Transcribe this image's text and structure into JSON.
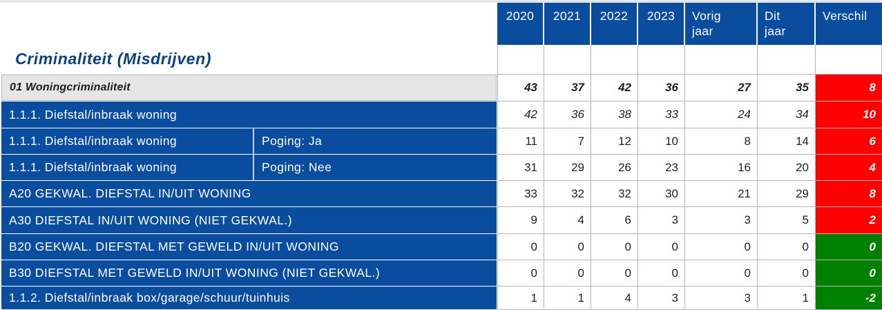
{
  "title": "Criminaliteit (Misdrijven)",
  "header": {
    "years": [
      "2020",
      "2021",
      "2022",
      "2023"
    ],
    "vorig_jaar": [
      "Vorig",
      "jaar"
    ],
    "dit_jaar": [
      "Dit",
      "jaar"
    ],
    "verschil": "Verschil"
  },
  "colors": {
    "header_blue": "#0a4d9f",
    "increase": "#ff0000",
    "no_change_or_decrease": "#008000",
    "group_bg": "#e6e6e6"
  },
  "rows": [
    {
      "label": "01 Woningcriminaliteit",
      "sub": "",
      "values": [
        "43",
        "37",
        "42",
        "36",
        "27",
        "35"
      ],
      "diff": "8",
      "trend": "up",
      "group": true
    },
    {
      "label": "1.1.1. Diefstal/inbraak woning",
      "sub": "",
      "values": [
        "42",
        "36",
        "38",
        "33",
        "24",
        "34"
      ],
      "diff": "10",
      "trend": "up"
    },
    {
      "label": "1.1.1. Diefstal/inbraak woning",
      "sub": "Poging: Ja",
      "values": [
        "11",
        "7",
        "12",
        "10",
        "8",
        "14"
      ],
      "diff": "6",
      "trend": "up"
    },
    {
      "label": "1.1.1. Diefstal/inbraak woning",
      "sub": "Poging: Nee",
      "values": [
        "31",
        "29",
        "26",
        "23",
        "16",
        "20"
      ],
      "diff": "4",
      "trend": "up"
    },
    {
      "label": "A20 GEKWAL. DIEFSTAL IN/UIT WONING",
      "sub": "",
      "values": [
        "33",
        "32",
        "32",
        "30",
        "21",
        "29"
      ],
      "diff": "8",
      "trend": "up"
    },
    {
      "label": "A30 DIEFSTAL IN/UIT WONING (NIET GEKWAL.)",
      "sub": "",
      "values": [
        "9",
        "4",
        "6",
        "3",
        "3",
        "5"
      ],
      "diff": "2",
      "trend": "up"
    },
    {
      "label": "B20 GEKWAL. DIEFSTAL MET GEWELD IN/UIT WONING",
      "sub": "",
      "values": [
        "0",
        "0",
        "0",
        "0",
        "0",
        "0"
      ],
      "diff": "0",
      "trend": "even"
    },
    {
      "label": "B30 DIEFSTAL MET GEWELD IN/UIT WONING (NIET GEKWAL.)",
      "sub": "",
      "values": [
        "0",
        "0",
        "0",
        "0",
        "0",
        "0"
      ],
      "diff": "0",
      "trend": "even"
    },
    {
      "label": "1.1.2. Diefstal/inbraak box/garage/schuur/tuinhuis",
      "sub": "",
      "values": [
        "1",
        "1",
        "4",
        "3",
        "3",
        "1"
      ],
      "diff": "-2",
      "trend": "down"
    }
  ]
}
